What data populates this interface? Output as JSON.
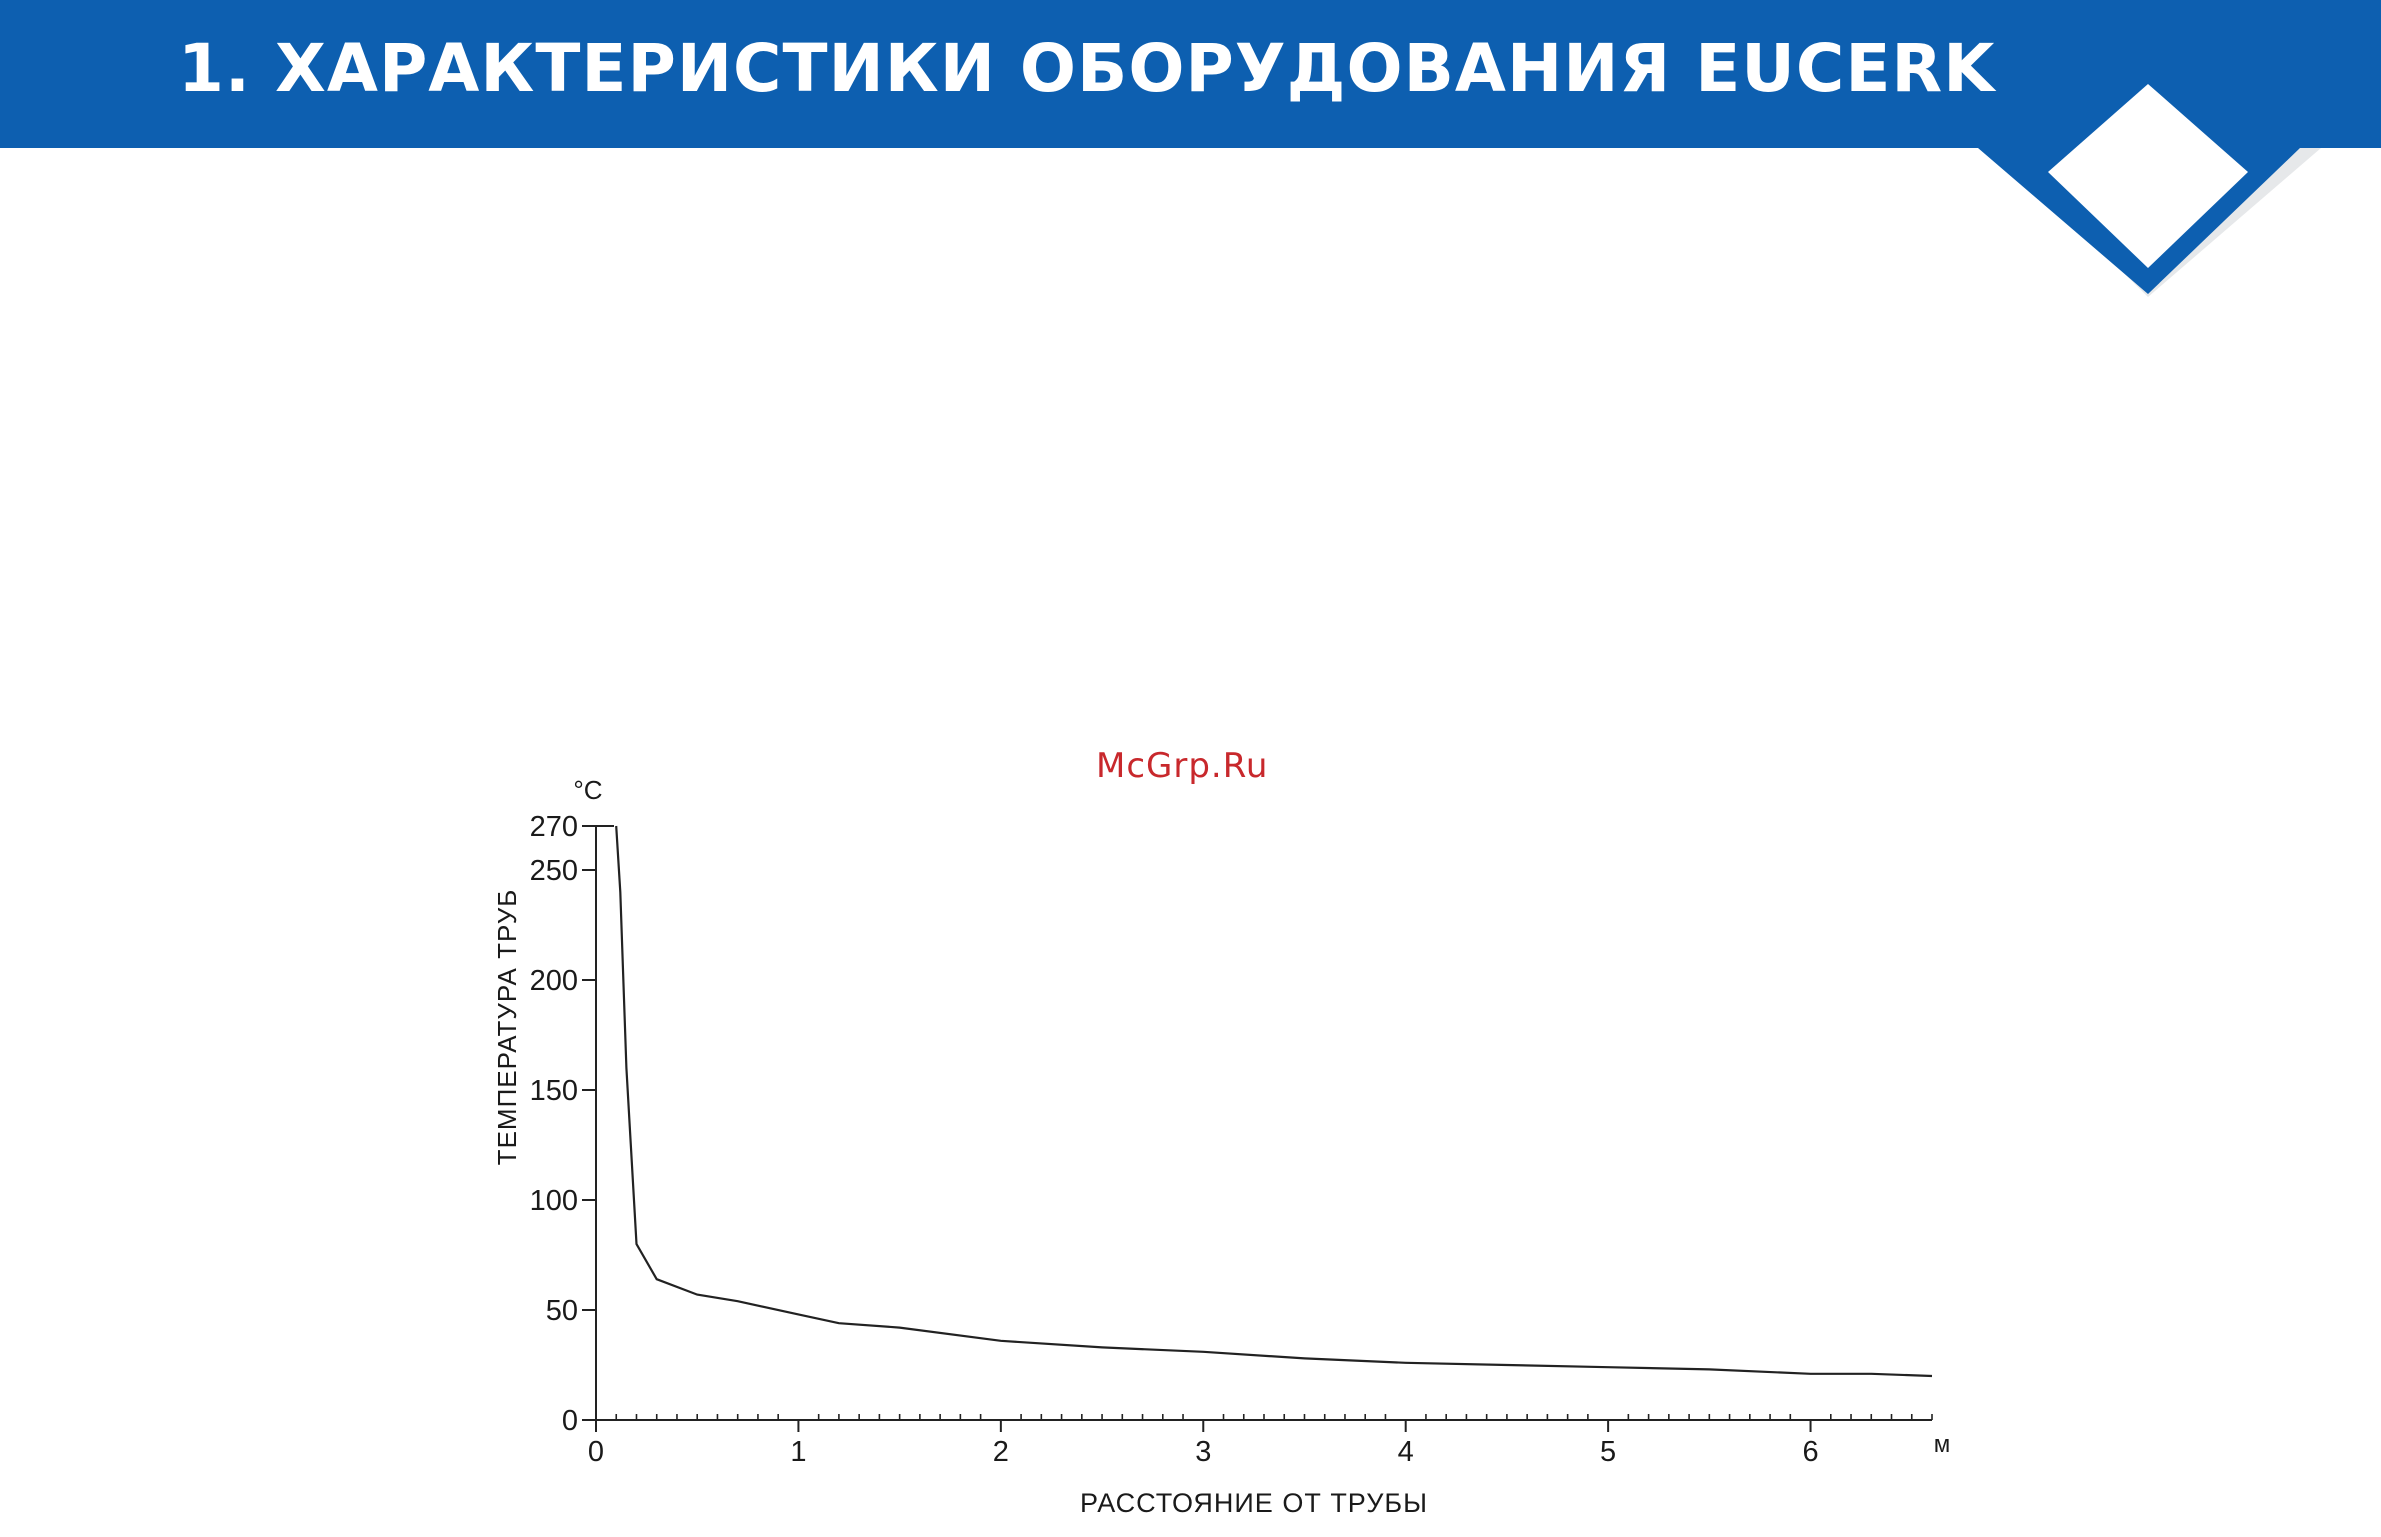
{
  "header": {
    "title": "1. ХАРАКТЕРИСТИКИ ОБОРУДОВАНИЯ EUCERK",
    "bar_color": "#0d5fb0"
  },
  "watermark": "McGrp.Ru",
  "chart_data": {
    "type": "line",
    "title": "",
    "xlabel": "РАССТОЯНИЕ ОТ ТРУБЫ",
    "ylabel": "ТЕМПЕРАТУРА ТРУБ",
    "x_unit": "м",
    "y_unit": "°C",
    "xlim": [
      0,
      6.6
    ],
    "ylim": [
      0,
      270
    ],
    "x_ticks": [
      0,
      1,
      2,
      3,
      4,
      5,
      6
    ],
    "y_ticks": [
      0,
      50,
      100,
      150,
      200,
      250,
      270
    ],
    "x_minor_step": 0.1,
    "grid": false,
    "series": [
      {
        "x": [
          0.1,
          0.12,
          0.15,
          0.2,
          0.3,
          0.5,
          0.7,
          1.0,
          1.2,
          1.5,
          2.0,
          2.5,
          3.0,
          3.5,
          4.0,
          4.5,
          5.0,
          5.5,
          6.0,
          6.3,
          6.6
        ],
        "y": [
          270,
          240,
          160,
          80,
          64,
          57,
          54,
          48,
          44,
          42,
          36,
          33,
          31,
          28,
          26,
          25,
          24,
          23,
          21,
          21,
          20
        ]
      }
    ]
  }
}
